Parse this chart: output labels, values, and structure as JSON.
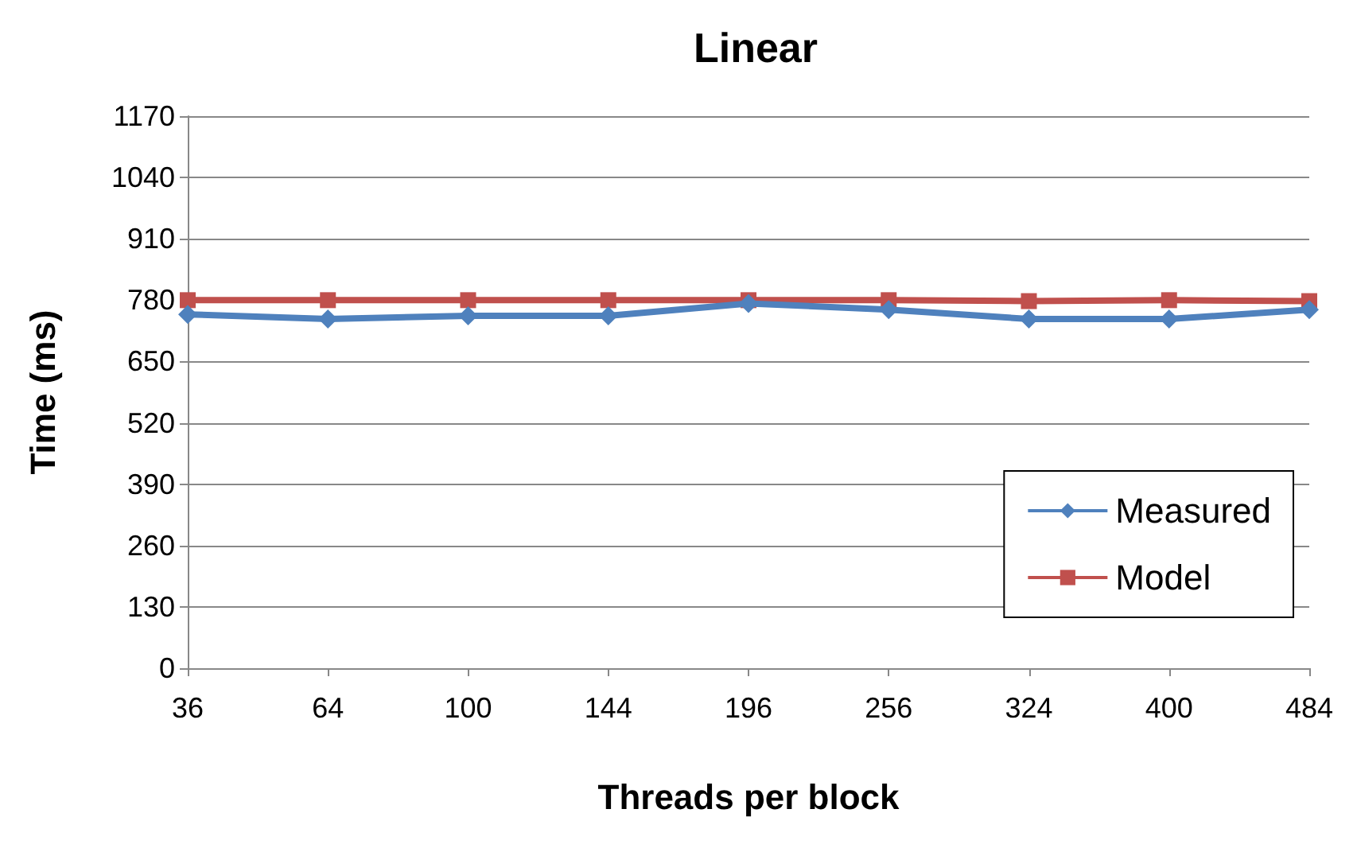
{
  "chart_data": {
    "type": "line",
    "title": "Linear",
    "xlabel": "Threads per block",
    "ylabel": "Time (ms)",
    "categories": [
      "36",
      "64",
      "100",
      "144",
      "196",
      "256",
      "324",
      "400",
      "484"
    ],
    "series": [
      {
        "name": "Measured",
        "color": "#4f81bd",
        "values": [
          750,
          740,
          747,
          747,
          773,
          760,
          740,
          740,
          760
        ],
        "marker": "diamond"
      },
      {
        "name": "Model",
        "color": "#c0504d",
        "values": [
          780,
          780,
          780,
          780,
          780,
          780,
          778,
          780,
          778
        ],
        "marker": "square"
      }
    ],
    "ylim": [
      0,
      1170
    ],
    "yticks": [
      0,
      130,
      260,
      390,
      520,
      650,
      780,
      910,
      1040,
      1170
    ],
    "grid": "y",
    "legend": "bottom right"
  }
}
